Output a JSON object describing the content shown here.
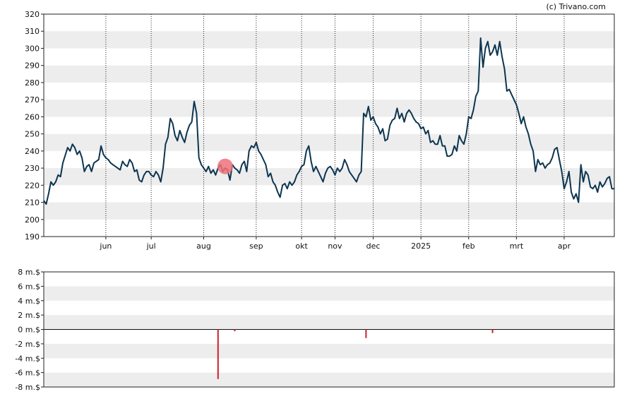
{
  "credit": "(c) Trivano.com",
  "chart_data": [
    {
      "type": "line",
      "title": "",
      "xlabel": "",
      "ylabel": "",
      "ylim": [
        190,
        320
      ],
      "yticks": [
        190,
        200,
        210,
        220,
        230,
        240,
        250,
        260,
        270,
        280,
        290,
        300,
        310,
        320
      ],
      "x_month_labels": [
        "jun",
        "jul",
        "aug",
        "sep",
        "okt",
        "nov",
        "dec",
        "2025",
        "feb",
        "mrt",
        "apr"
      ],
      "x_month_positions": [
        1.3,
        2.25,
        3.35,
        4.45,
        5.4,
        6.1,
        6.9,
        7.9,
        8.9,
        9.9,
        10.9
      ],
      "x_range": [
        0,
        11.95
      ],
      "grid": true,
      "line_color": "#0d3550",
      "marker": {
        "x": 3.8,
        "y": 231,
        "color": "#f0707a",
        "shape": "circle"
      },
      "series": [
        {
          "x": [
            0.0,
            0.05,
            0.1,
            0.15,
            0.2,
            0.25,
            0.3,
            0.35,
            0.4,
            0.5,
            0.55,
            0.6,
            0.65,
            0.7,
            0.75,
            0.8,
            0.85,
            0.9,
            0.95,
            1.0,
            1.05,
            1.1,
            1.15,
            1.2,
            1.25,
            1.3,
            1.35,
            1.4,
            1.5,
            1.6,
            1.65,
            1.7,
            1.75,
            1.8,
            1.85,
            1.9,
            1.95,
            2.0,
            2.05,
            2.1,
            2.15,
            2.2,
            2.25,
            2.3,
            2.35,
            2.4,
            2.45,
            2.5,
            2.55,
            2.6,
            2.65,
            2.7,
            2.75,
            2.8,
            2.85,
            2.9,
            2.95,
            3.0,
            3.05,
            3.1,
            3.15,
            3.2,
            3.25,
            3.3,
            3.35,
            3.4,
            3.45,
            3.5,
            3.55,
            3.6,
            3.65,
            3.7,
            3.75,
            3.8,
            3.85,
            3.9,
            3.95,
            4.0,
            4.05,
            4.1,
            4.15,
            4.2,
            4.25,
            4.3,
            4.35,
            4.4,
            4.45,
            4.5,
            4.55,
            4.6,
            4.65,
            4.7,
            4.75,
            4.8,
            4.85,
            4.9,
            4.95,
            5.0,
            5.05,
            5.1,
            5.15,
            5.2,
            5.25,
            5.3,
            5.35,
            5.4,
            5.45,
            5.5,
            5.55,
            5.6,
            5.65,
            5.7,
            5.75,
            5.8,
            5.85,
            5.9,
            5.95,
            6.0,
            6.05,
            6.1,
            6.15,
            6.2,
            6.25,
            6.3,
            6.35,
            6.4,
            6.45,
            6.5,
            6.55,
            6.6,
            6.65,
            6.7,
            6.75,
            6.8,
            6.85,
            6.9,
            6.95,
            7.0,
            7.05,
            7.1,
            7.15,
            7.2,
            7.25,
            7.3,
            7.35,
            7.4,
            7.45,
            7.5,
            7.55,
            7.6,
            7.65,
            7.7,
            7.75,
            7.8,
            7.85,
            7.9,
            7.95,
            8.0,
            8.05,
            8.1,
            8.15,
            8.2,
            8.25,
            8.3,
            8.35,
            8.4,
            8.45,
            8.5,
            8.55,
            8.6,
            8.65,
            8.7,
            8.75,
            8.8,
            8.85,
            8.9,
            8.95,
            9.0,
            9.05,
            9.1,
            9.15,
            9.2,
            9.25,
            9.3,
            9.35,
            9.4,
            9.45,
            9.5,
            9.55,
            9.6,
            9.65,
            9.7,
            9.75,
            9.8,
            9.85,
            9.9,
            9.95,
            10.0,
            10.05,
            10.1,
            10.15,
            10.2,
            10.25,
            10.3,
            10.35,
            10.4,
            10.45,
            10.5,
            10.55,
            10.6,
            10.65,
            10.7,
            10.75,
            10.8,
            10.85,
            10.9,
            10.95,
            11.0,
            11.05,
            11.1,
            11.15,
            11.2,
            11.25,
            11.3,
            11.35,
            11.4,
            11.45,
            11.5,
            11.55,
            11.6,
            11.65,
            11.7,
            11.75,
            11.8,
            11.85,
            11.9,
            11.95
          ],
          "values": [
            211,
            209,
            215,
            222,
            220,
            222,
            226,
            225,
            233,
            242,
            240,
            244,
            242,
            238,
            240,
            236,
            228,
            231,
            232,
            228,
            233,
            234,
            235,
            243,
            238,
            236,
            235,
            233,
            231,
            229,
            234,
            232,
            231,
            235,
            233,
            228,
            229,
            223,
            222,
            226,
            228,
            228,
            226,
            225,
            228,
            226,
            222,
            230,
            244,
            248,
            259,
            256,
            249,
            246,
            252,
            248,
            245,
            251,
            255,
            257,
            269,
            262,
            236,
            232,
            230,
            228,
            231,
            227,
            229,
            226,
            230,
            232,
            228,
            230,
            229,
            223,
            232,
            230,
            229,
            227,
            232,
            234,
            228,
            240,
            243,
            242,
            245,
            240,
            238,
            235,
            232,
            225,
            227,
            222,
            220,
            216,
            213,
            220,
            221,
            218,
            222,
            220,
            222,
            226,
            228,
            231,
            232,
            240,
            243,
            234,
            228,
            231,
            228,
            225,
            222,
            227,
            230,
            231,
            229,
            226,
            230,
            228,
            230,
            235,
            232,
            228,
            226,
            224,
            222,
            226,
            228,
            262,
            260,
            266,
            258,
            260,
            256,
            254,
            250,
            253,
            246,
            247,
            255,
            258,
            259,
            265,
            259,
            262,
            257,
            262,
            264,
            262,
            259,
            257,
            256,
            253,
            254,
            250,
            252,
            245,
            246,
            244,
            244,
            249,
            243,
            243,
            237,
            237,
            238,
            243,
            240,
            249,
            246,
            244,
            250,
            260,
            259,
            264,
            272,
            275,
            306,
            289,
            300,
            304,
            296,
            298,
            302,
            296,
            304,
            295,
            288,
            275,
            276,
            273,
            270,
            267,
            262,
            256,
            260,
            254,
            250,
            244,
            240,
            228,
            235,
            232,
            233,
            230,
            232,
            233,
            236,
            241,
            242,
            235,
            228,
            218,
            222,
            228,
            216,
            212,
            215,
            210,
            232,
            222,
            228,
            226,
            219,
            218,
            220,
            216,
            222,
            219,
            221,
            224,
            225,
            218,
            218
          ]
        }
      ]
    },
    {
      "type": "bar",
      "title": "",
      "xlabel": "",
      "ylabel": "",
      "ylim": [
        -8,
        8
      ],
      "yticks": [
        -8,
        -6,
        -4,
        -2,
        0,
        2,
        4,
        6,
        8
      ],
      "ytick_labels": [
        "-8 m.$",
        "-6 m.$",
        "-4 m.$",
        "-2 m.$",
        "0 m.$",
        "2 m.$",
        "4 m.$",
        "6 m.$",
        "8 m.$"
      ],
      "unit": "m.$",
      "x_range": [
        0,
        11.95
      ],
      "grid": true,
      "bar_color": "#cc1f2c",
      "series": [
        {
          "x": [
            3.65,
            4.0,
            6.75,
            9.4
          ],
          "values": [
            -6.9,
            -0.25,
            -1.2,
            -0.5
          ]
        }
      ]
    }
  ]
}
